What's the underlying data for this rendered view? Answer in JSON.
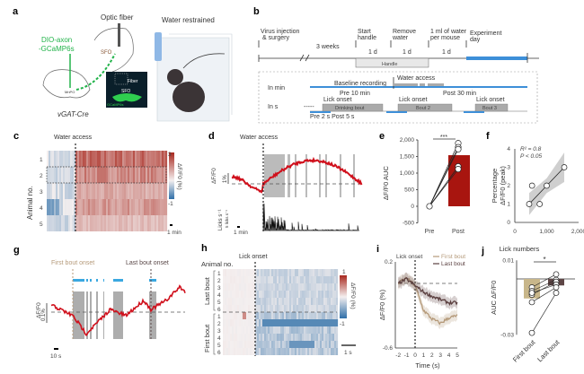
{
  "panels": {
    "a": "a",
    "b": "b",
    "c": "c",
    "d": "d",
    "e": "e",
    "f": "f",
    "g": "g",
    "h": "h",
    "i": "i",
    "j": "j"
  },
  "a": {
    "optic_fiber": "Optic fiber",
    "water_restrained": "Water restrained",
    "virus_line1": "DIO-axon",
    "virus_line2": "-GCaMP6s",
    "mouse_line": "vGAT-Cre",
    "sfo": "SFO",
    "mnpo": "MnPO",
    "inset_fiber": "Fiber",
    "inset_sfo": "SFO",
    "inset_gcamp": "GCaMP6s",
    "colors": {
      "gcamp": "#22b34a",
      "water": "#5b9bd5"
    }
  },
  "b": {
    "virus1": "Virus injection",
    "virus2": "& surgery",
    "weeks": "3 weeks",
    "start1": "Start",
    "start2": "handle",
    "remove1": "Remove",
    "remove2": "water",
    "ml1": "1 ml of water",
    "ml2": "per mouse",
    "exp1": "Experiment",
    "exp2": "day",
    "d1": "1 d",
    "d2": "1 d",
    "d3": "1 d",
    "handle": "Handle",
    "in_min": "In min",
    "in_s": "In s",
    "baseline": "Baseline recording",
    "water_access": "Water access",
    "pre10": "Pre 10 min",
    "post30": "Post 30 min",
    "lick1": "Lick onset",
    "lick2": "Lick onset",
    "lick3": "Lick onset",
    "bout1": "Drinking bout",
    "bout2": "Bout 2",
    "bout3": "Bout 3",
    "prepost": "Pre 2 s  Post 5 s",
    "ellipsis": "-----"
  },
  "c": {
    "water_access": "Water access",
    "ylabel": "Animal no.",
    "rows": [
      "1",
      "2",
      "3",
      "4",
      "5"
    ],
    "cbar_max": "3",
    "cbar_min": "-1",
    "cbar_label": "ΔF/F0 (%)",
    "scale": "1 min"
  },
  "d": {
    "water_access": "Water access",
    "ylabel": "ΔF/F0",
    "scale_y": "1%",
    "licks_label": "Licks s⁻¹",
    "licks_scale": "5 licks s⁻¹",
    "scale_x": "1 min"
  },
  "g": {
    "first": "First bout onset",
    "last": "Last bout onset",
    "ylabel": "ΔF/F0",
    "scale_y": "0.1%",
    "scale_x": "10 s"
  },
  "h": {
    "lick_onset": "Lick onset",
    "animal_no": "Animal no.",
    "last_bout": "Last bout",
    "first_bout": "First bout",
    "rows": [
      "1",
      "2",
      "3",
      "4",
      "5",
      "6",
      "1",
      "2",
      "3",
      "4",
      "5",
      "6"
    ],
    "cbar_max": "1",
    "cbar_min": "-1",
    "cbar_label": "ΔF/F0 (%)",
    "scale": "1 s"
  },
  "chart_data": [
    {
      "panel": "e",
      "type": "bar",
      "categories": [
        "Pre",
        "Post"
      ],
      "values": [
        0,
        1540
      ],
      "points": {
        "Pre": [
          0,
          0,
          0,
          0,
          0
        ],
        "Post": [
          1900,
          1780,
          1720,
          1200,
          1120
        ]
      },
      "ylabel": "ΔF/F0 AUC",
      "yticks": [
        "2,000",
        "1,500",
        "1,000",
        "500",
        "0",
        "-500"
      ],
      "ylim": [
        -500,
        2000
      ],
      "significance": "***",
      "bar_color": "#a8150f"
    },
    {
      "panel": "f",
      "type": "scatter",
      "x": [
        450,
        540,
        780,
        1000,
        1550
      ],
      "y": [
        1,
        2,
        1,
        2,
        3
      ],
      "xlabel": "Lick numbers",
      "ylabel_line1": "Percentage",
      "ylabel_line2": "ΔF/F0 (peak)",
      "xticks": [
        "0",
        "1,000",
        "2,000"
      ],
      "yticks": [
        "4",
        "3",
        "2",
        "1",
        "0"
      ],
      "xlim": [
        0,
        2000
      ],
      "ylim": [
        0,
        4
      ],
      "r2": "R² = 0.8",
      "p": "P < 0.05"
    },
    {
      "panel": "i",
      "type": "line",
      "x": [
        -2,
        -1,
        0,
        1,
        2,
        3,
        4,
        5
      ],
      "series": [
        {
          "name": "First bout",
          "values": [
            0.0,
            0.05,
            -0.02,
            -0.25,
            -0.33,
            -0.37,
            -0.32,
            -0.3
          ],
          "color": "#b59a7a"
        },
        {
          "name": "Last bout",
          "values": [
            0.0,
            0.04,
            -0.02,
            -0.08,
            -0.12,
            -0.15,
            -0.18,
            -0.18
          ],
          "color": "#5a3f3f"
        }
      ],
      "lick_onset": "Lick onset",
      "xlabel": "Time (s)",
      "ylabel": "ΔF/F0 (%)",
      "xticks": [
        "-2",
        "-1",
        "0",
        "1",
        "2",
        "3",
        "4",
        "5"
      ],
      "yticks": [
        "0.2",
        "-0.6"
      ],
      "xlim": [
        -2,
        5
      ],
      "ylim": [
        -0.6,
        0.2
      ]
    },
    {
      "panel": "j",
      "type": "bar",
      "categories": [
        "First bout",
        "Last bout"
      ],
      "values": [
        -0.0105,
        -0.0035
      ],
      "points": {
        "First bout": [
          -0.0045,
          -0.0065,
          -0.0085,
          -0.0075,
          -0.0125,
          -0.029
        ],
        "Last bout": [
          0.0025,
          -0.0005,
          -0.0015,
          -0.003,
          -0.0045,
          -0.0075
        ]
      },
      "ylabel": "AUC ΔF/F0",
      "yticks": [
        "0.01",
        "-0.03"
      ],
      "ylim": [
        -0.03,
        0.01
      ],
      "significance": "*",
      "colors": [
        "#c8b68a",
        "#5e4646"
      ]
    }
  ]
}
